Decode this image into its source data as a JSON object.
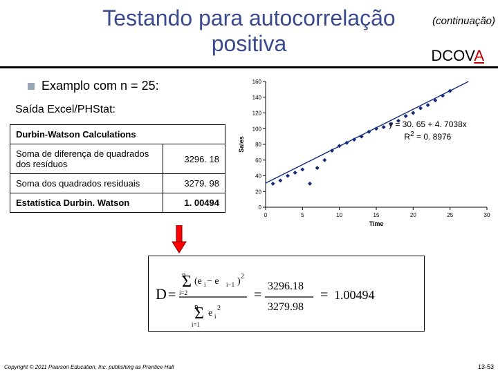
{
  "header": {
    "title": "Testando para autocorrelação positiva",
    "continuation": "(continuação)",
    "dcova_prefix": "DCOV",
    "dcova_last": "A"
  },
  "body": {
    "example_label": "Examplo com  n = 25:",
    "phstat_label": "Saída Excel/PHStat:"
  },
  "table": {
    "header": "Durbin-Watson Calculations",
    "rows": [
      {
        "label": "Soma de diferença de quadrados dos resíduos",
        "value": "3296. 18"
      },
      {
        "label": "Soma dos quadrados residuais",
        "value": "3279. 98"
      },
      {
        "label": "Estatística Durbin. Watson",
        "value": "1. 00494"
      }
    ]
  },
  "chart": {
    "type": "scatter",
    "xlabel": "Time",
    "ylabel": "Sales",
    "xlim": [
      0,
      30
    ],
    "ylim": [
      0,
      160
    ],
    "xtick_step": 5,
    "ytick_step": 20,
    "label_fontsize": 9,
    "tick_fontsize": 8,
    "point_color": "#152a7a",
    "line_color": "#152a7a",
    "background": "#ffffff",
    "points": [
      [
        1,
        30
      ],
      [
        2,
        34
      ],
      [
        3,
        40
      ],
      [
        4,
        44
      ],
      [
        5,
        48
      ],
      [
        6,
        30
      ],
      [
        7,
        50
      ],
      [
        8,
        60
      ],
      [
        9,
        72
      ],
      [
        10,
        78
      ],
      [
        11,
        82
      ],
      [
        12,
        86
      ],
      [
        13,
        90
      ],
      [
        14,
        96
      ],
      [
        15,
        100
      ],
      [
        16,
        102
      ],
      [
        17,
        106
      ],
      [
        18,
        110
      ],
      [
        19,
        116
      ],
      [
        20,
        120
      ],
      [
        21,
        126
      ],
      [
        22,
        130
      ],
      [
        23,
        136
      ],
      [
        24,
        142
      ],
      [
        25,
        148
      ]
    ],
    "fit_line": {
      "x1": 0,
      "y1": 30.65,
      "x2": 30,
      "y2": 171.76
    },
    "equation_line1": "y = 30. 65 + 4. 7038x",
    "equation_r2_prefix": "R",
    "equation_r2_value": " = 0. 8976"
  },
  "formula": {
    "D_label": "D",
    "numerator_value": "3296.18",
    "denominator_value": "3279.98",
    "result_value": "1.00494",
    "stroke": "#000000",
    "font_family": "serif"
  },
  "footer": {
    "copyright": "Copyright © 2011 Pearson Education, Inc. publishing as Prentice Hall",
    "page": "13-53"
  },
  "colors": {
    "title": "#3b4a8c",
    "accent_red": "#c00000",
    "arrow_red": "#ff0000",
    "arrow_border": "#800000"
  }
}
